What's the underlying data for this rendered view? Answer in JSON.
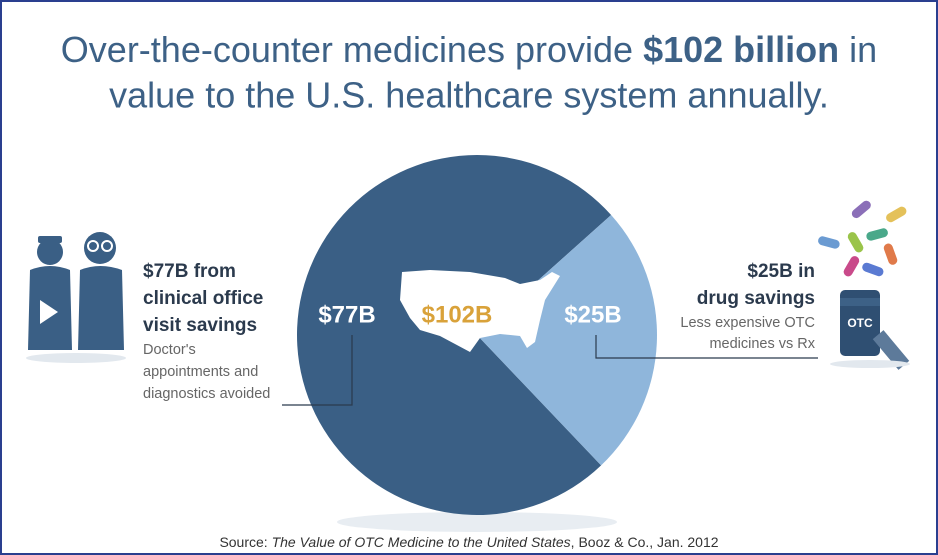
{
  "chart_data": {
    "type": "pie",
    "title": {
      "part_1": "Over-the-counter medicines provide",
      "emphasis": "$102 billion",
      "part_2": "in",
      "part_3": "value to the U.S. healthcare system annually."
    },
    "values": [
      77,
      25
    ],
    "value_labels": [
      "$77B",
      "$25B"
    ],
    "colors": [
      "#3a5f85",
      "#8fb6db"
    ],
    "center_label": "$102B",
    "left_annotation": {
      "heading": [
        "$77B from",
        "clinical office",
        "visit savings"
      ],
      "text": [
        "Doctor's",
        "appointments and",
        "diagnostics avoided"
      ]
    },
    "right_annotation": {
      "heading": [
        "$25B in",
        "drug savings"
      ],
      "text": [
        "Less expensive OTC",
        "medicines vs Rx"
      ]
    },
    "icon_label": "OTC",
    "source": {
      "prefix": "Source:",
      "work": "The Value of OTC Medicine to the United States",
      "suffix": ", Booz & Co., Jan. 2012"
    }
  }
}
